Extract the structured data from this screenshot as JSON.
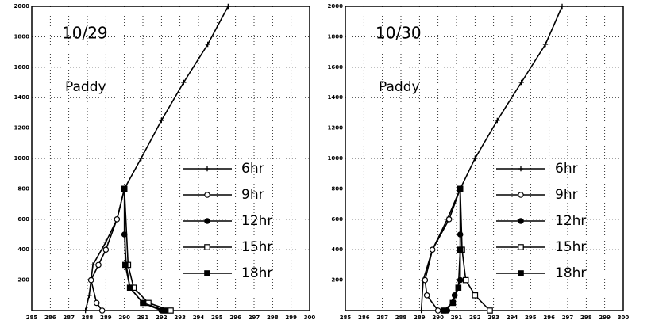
{
  "chart_data": [
    {
      "type": "line",
      "annotations": [
        "10/29",
        "Paddy"
      ],
      "xlim": [
        285,
        300
      ],
      "xticks": [
        285,
        286,
        287,
        288,
        289,
        290,
        291,
        292,
        293,
        294,
        295,
        296,
        297,
        298,
        299,
        300
      ],
      "ylim": [
        0,
        2000
      ],
      "yticks": [
        200,
        400,
        600,
        800,
        1000,
        1200,
        1400,
        1600,
        1800,
        2000
      ],
      "grid": true,
      "legend": "right",
      "series": [
        {
          "name": "6hr",
          "color": "#000",
          "marker": "plus",
          "x": [
            287.9,
            288.1,
            288.3,
            289.0,
            289.6,
            290.0,
            290.9,
            292.0,
            293.2,
            294.5,
            295.6
          ],
          "values": [
            0,
            100,
            300,
            450,
            600,
            800,
            1000,
            1250,
            1500,
            1750,
            2000
          ]
        },
        {
          "name": "9hr",
          "color": "#000",
          "marker": "circle-open",
          "x": [
            288.8,
            288.5,
            288.2,
            288.6,
            289.0,
            289.6,
            290.0
          ],
          "values": [
            0,
            50,
            200,
            300,
            400,
            600,
            800
          ]
        },
        {
          "name": "12hr",
          "color": "#000",
          "marker": "circle-filled",
          "x": [
            292.0,
            291.0,
            290.3,
            290.1,
            290.0,
            290.0
          ],
          "values": [
            0,
            50,
            150,
            300,
            500,
            800
          ]
        },
        {
          "name": "15hr",
          "color": "#000",
          "marker": "square-open",
          "x": [
            292.5,
            291.3,
            290.5,
            290.2,
            290.0
          ],
          "values": [
            0,
            50,
            150,
            300,
            800
          ]
        },
        {
          "name": "18hr",
          "color": "#000",
          "marker": "square-filled",
          "x": [
            292.2,
            291.0,
            290.3,
            290.05,
            290.0
          ],
          "values": [
            0,
            50,
            150,
            300,
            800
          ]
        }
      ]
    },
    {
      "type": "line",
      "annotations": [
        "10/30",
        "Paddy"
      ],
      "xlim": [
        285,
        300
      ],
      "xticks": [
        285,
        286,
        287,
        288,
        289,
        290,
        291,
        292,
        293,
        294,
        295,
        296,
        297,
        298,
        299,
        300
      ],
      "ylim": [
        0,
        2000
      ],
      "yticks": [
        200,
        400,
        600,
        800,
        1000,
        1200,
        1400,
        1600,
        1800,
        2000
      ],
      "grid": true,
      "legend": "right",
      "series": [
        {
          "name": "6hr",
          "color": "#000",
          "marker": "plus",
          "x": [
            289.1,
            289.2,
            289.7,
            290.5,
            291.2,
            292.0,
            293.2,
            294.5,
            295.8,
            296.7
          ],
          "values": [
            0,
            200,
            400,
            600,
            800,
            1000,
            1250,
            1500,
            1750,
            2000
          ]
        },
        {
          "name": "9hr",
          "color": "#000",
          "marker": "circle-open",
          "x": [
            290.0,
            289.4,
            289.3,
            289.7,
            290.6,
            291.2
          ],
          "values": [
            0,
            100,
            200,
            400,
            600,
            800
          ]
        },
        {
          "name": "12hr",
          "color": "#000",
          "marker": "circle-filled",
          "x": [
            290.5,
            290.9,
            291.2,
            291.2,
            291.2
          ],
          "values": [
            0,
            100,
            200,
            500,
            800
          ]
        },
        {
          "name": "15hr",
          "color": "#000",
          "marker": "square-open",
          "x": [
            292.8,
            292.0,
            291.5,
            291.3,
            291.2
          ],
          "values": [
            0,
            100,
            200,
            400,
            800
          ]
        },
        {
          "name": "18hr",
          "color": "#000",
          "marker": "square-filled",
          "x": [
            290.3,
            290.8,
            291.1,
            291.2,
            291.2
          ],
          "values": [
            0,
            50,
            150,
            400,
            800
          ]
        }
      ]
    }
  ]
}
